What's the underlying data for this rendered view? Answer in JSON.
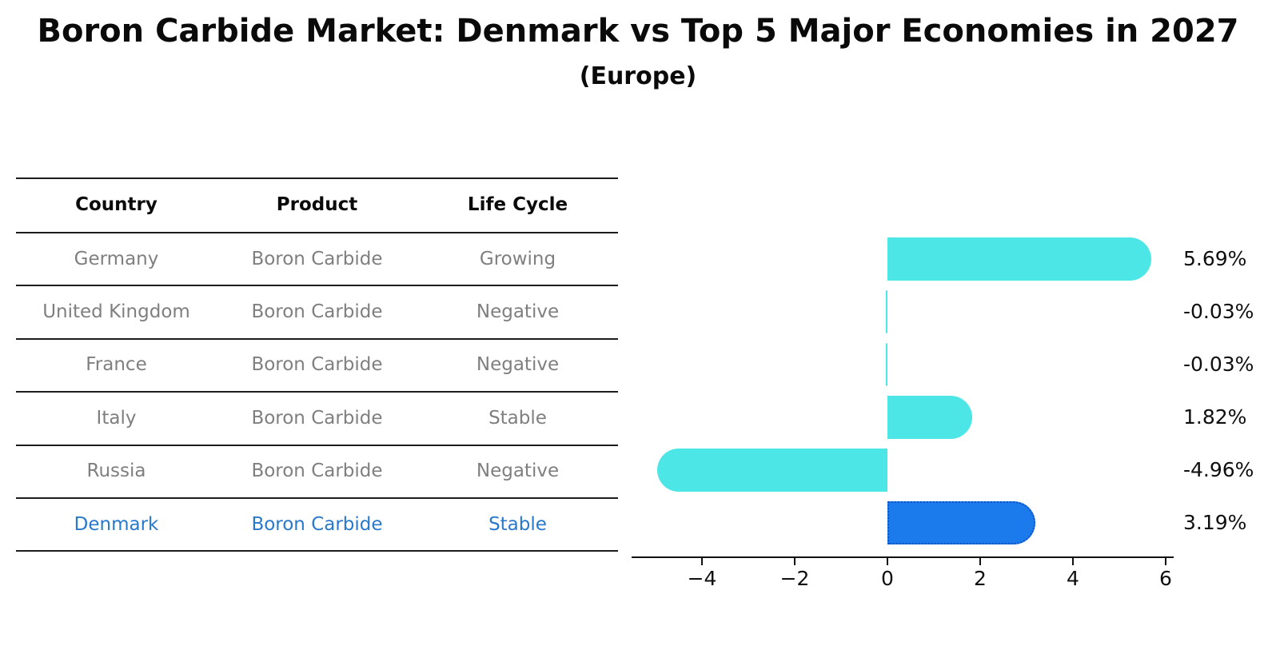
{
  "title": "Boron Carbide Market: Denmark vs Top 5 Major Economies in 2027",
  "subtitle": "(Europe)",
  "table": {
    "headers": [
      "Country",
      "Product",
      "Life Cycle"
    ],
    "rows": [
      {
        "country": "Germany",
        "product": "Boron Carbide",
        "life_cycle": "Growing",
        "highlight": false
      },
      {
        "country": "United Kingdom",
        "product": "Boron Carbide",
        "life_cycle": "Negative",
        "highlight": false
      },
      {
        "country": "France",
        "product": "Boron Carbide",
        "life_cycle": "Negative",
        "highlight": false
      },
      {
        "country": "Italy",
        "product": "Boron Carbide",
        "life_cycle": "Stable",
        "highlight": false
      },
      {
        "country": "Russia",
        "product": "Boron Carbide",
        "life_cycle": "Negative",
        "highlight": false
      },
      {
        "country": "Denmark",
        "product": "Boron Carbide",
        "life_cycle": "Stable",
        "highlight": true
      }
    ]
  },
  "chart_data": {
    "type": "bar",
    "orientation": "horizontal",
    "title": "Boron Carbide Market: Denmark vs Top 5 Major Economies in 2027",
    "subtitle": "(Europe)",
    "categories": [
      "Germany",
      "United Kingdom",
      "France",
      "Italy",
      "Russia",
      "Denmark"
    ],
    "values": [
      5.69,
      -0.03,
      -0.03,
      1.82,
      -4.96,
      3.19
    ],
    "labels": [
      "5.69%",
      "-0.03%",
      "-0.03%",
      "1.82%",
      "-4.96%",
      "3.19%"
    ],
    "xticks": [
      "−4",
      "−2",
      "0",
      "2",
      "4",
      "6"
    ],
    "xtick_values": [
      -4,
      -2,
      0,
      2,
      4,
      6
    ],
    "xlim": [
      -5.5,
      6.2
    ],
    "grid": false,
    "legend": "none",
    "bar_color": "#4de6e6",
    "highlight_index": 5,
    "highlight_color": "#1b7aec",
    "highlight_edge_color": "#0f52c0",
    "text_color_highlight_row": "#2878cb",
    "value_label_color": "#0f0f0f"
  }
}
